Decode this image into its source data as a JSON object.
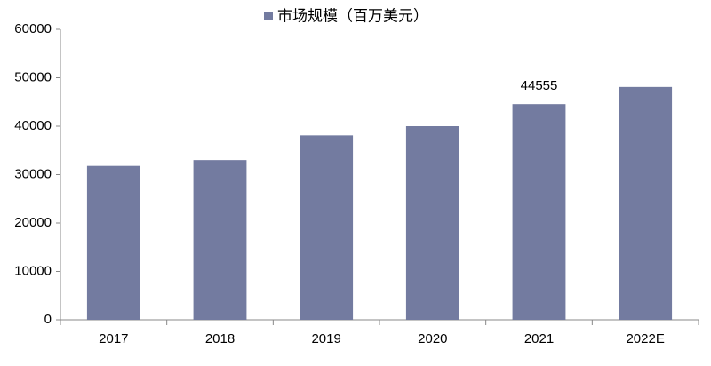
{
  "chart_data": {
    "type": "bar",
    "categories": [
      "2017",
      "2018",
      "2019",
      "2020",
      "2021",
      "2022E"
    ],
    "series": [
      {
        "name": "市场规模（百万美元）",
        "color": "#737ba0",
        "values": [
          31800,
          33000,
          38100,
          40000,
          44555,
          48100
        ],
        "value_labels": [
          null,
          null,
          null,
          null,
          "44555",
          null
        ]
      }
    ],
    "ylim": [
      0,
      60000
    ],
    "yticks": [
      0,
      10000,
      20000,
      30000,
      40000,
      50000,
      60000
    ],
    "grid": false,
    "legend": "top"
  }
}
